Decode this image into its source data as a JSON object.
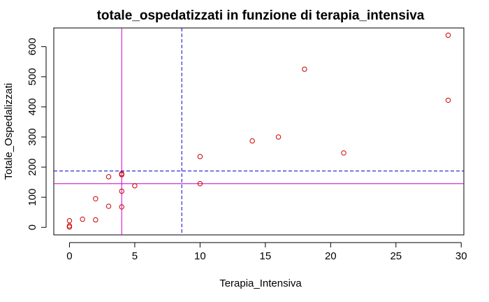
{
  "chart_data": {
    "type": "scatter",
    "title": "totale_ospedatizzati in funzione di terapia_intensiva",
    "xlabel": "Terapia_Intensiva",
    "ylabel": "Totale_Ospedalizzati",
    "xlim": [
      -1.2,
      30.2
    ],
    "ylim": [
      -25,
      662
    ],
    "x_ticks": [
      0,
      5,
      10,
      15,
      20,
      25,
      30
    ],
    "y_ticks": [
      0,
      100,
      200,
      300,
      400,
      500,
      600
    ],
    "x_tick_labels": [
      "0",
      "5",
      "10",
      "15",
      "20",
      "25",
      "30"
    ],
    "y_tick_labels": [
      "0",
      "100",
      "200",
      "300",
      "400",
      "500",
      "600"
    ],
    "grid": false,
    "legend": "none",
    "point_color": "#cc0000",
    "points": [
      {
        "x": 0,
        "y": 22
      },
      {
        "x": 0,
        "y": 5
      },
      {
        "x": 0,
        "y": 1
      },
      {
        "x": 1,
        "y": 27
      },
      {
        "x": 2,
        "y": 25
      },
      {
        "x": 2,
        "y": 95
      },
      {
        "x": 3,
        "y": 168
      },
      {
        "x": 3,
        "y": 70
      },
      {
        "x": 4,
        "y": 178
      },
      {
        "x": 4,
        "y": 175
      },
      {
        "x": 4,
        "y": 120
      },
      {
        "x": 4,
        "y": 68
      },
      {
        "x": 5,
        "y": 138
      },
      {
        "x": 10,
        "y": 235
      },
      {
        "x": 10,
        "y": 145
      },
      {
        "x": 14,
        "y": 287
      },
      {
        "x": 16,
        "y": 300
      },
      {
        "x": 18,
        "y": 525
      },
      {
        "x": 21,
        "y": 247
      },
      {
        "x": 29,
        "y": 638
      },
      {
        "x": 29,
        "y": 422
      }
    ],
    "reference_lines": [
      {
        "orientation": "vertical",
        "value": 4,
        "color": "#cc00cc",
        "style": "solid"
      },
      {
        "orientation": "horizontal",
        "value": 145,
        "color": "#cc00cc",
        "style": "solid"
      },
      {
        "orientation": "vertical",
        "value": 8.6,
        "color": "#0000cc",
        "style": "dashed"
      },
      {
        "orientation": "horizontal",
        "value": 187,
        "color": "#0000cc",
        "style": "dashed"
      }
    ]
  }
}
